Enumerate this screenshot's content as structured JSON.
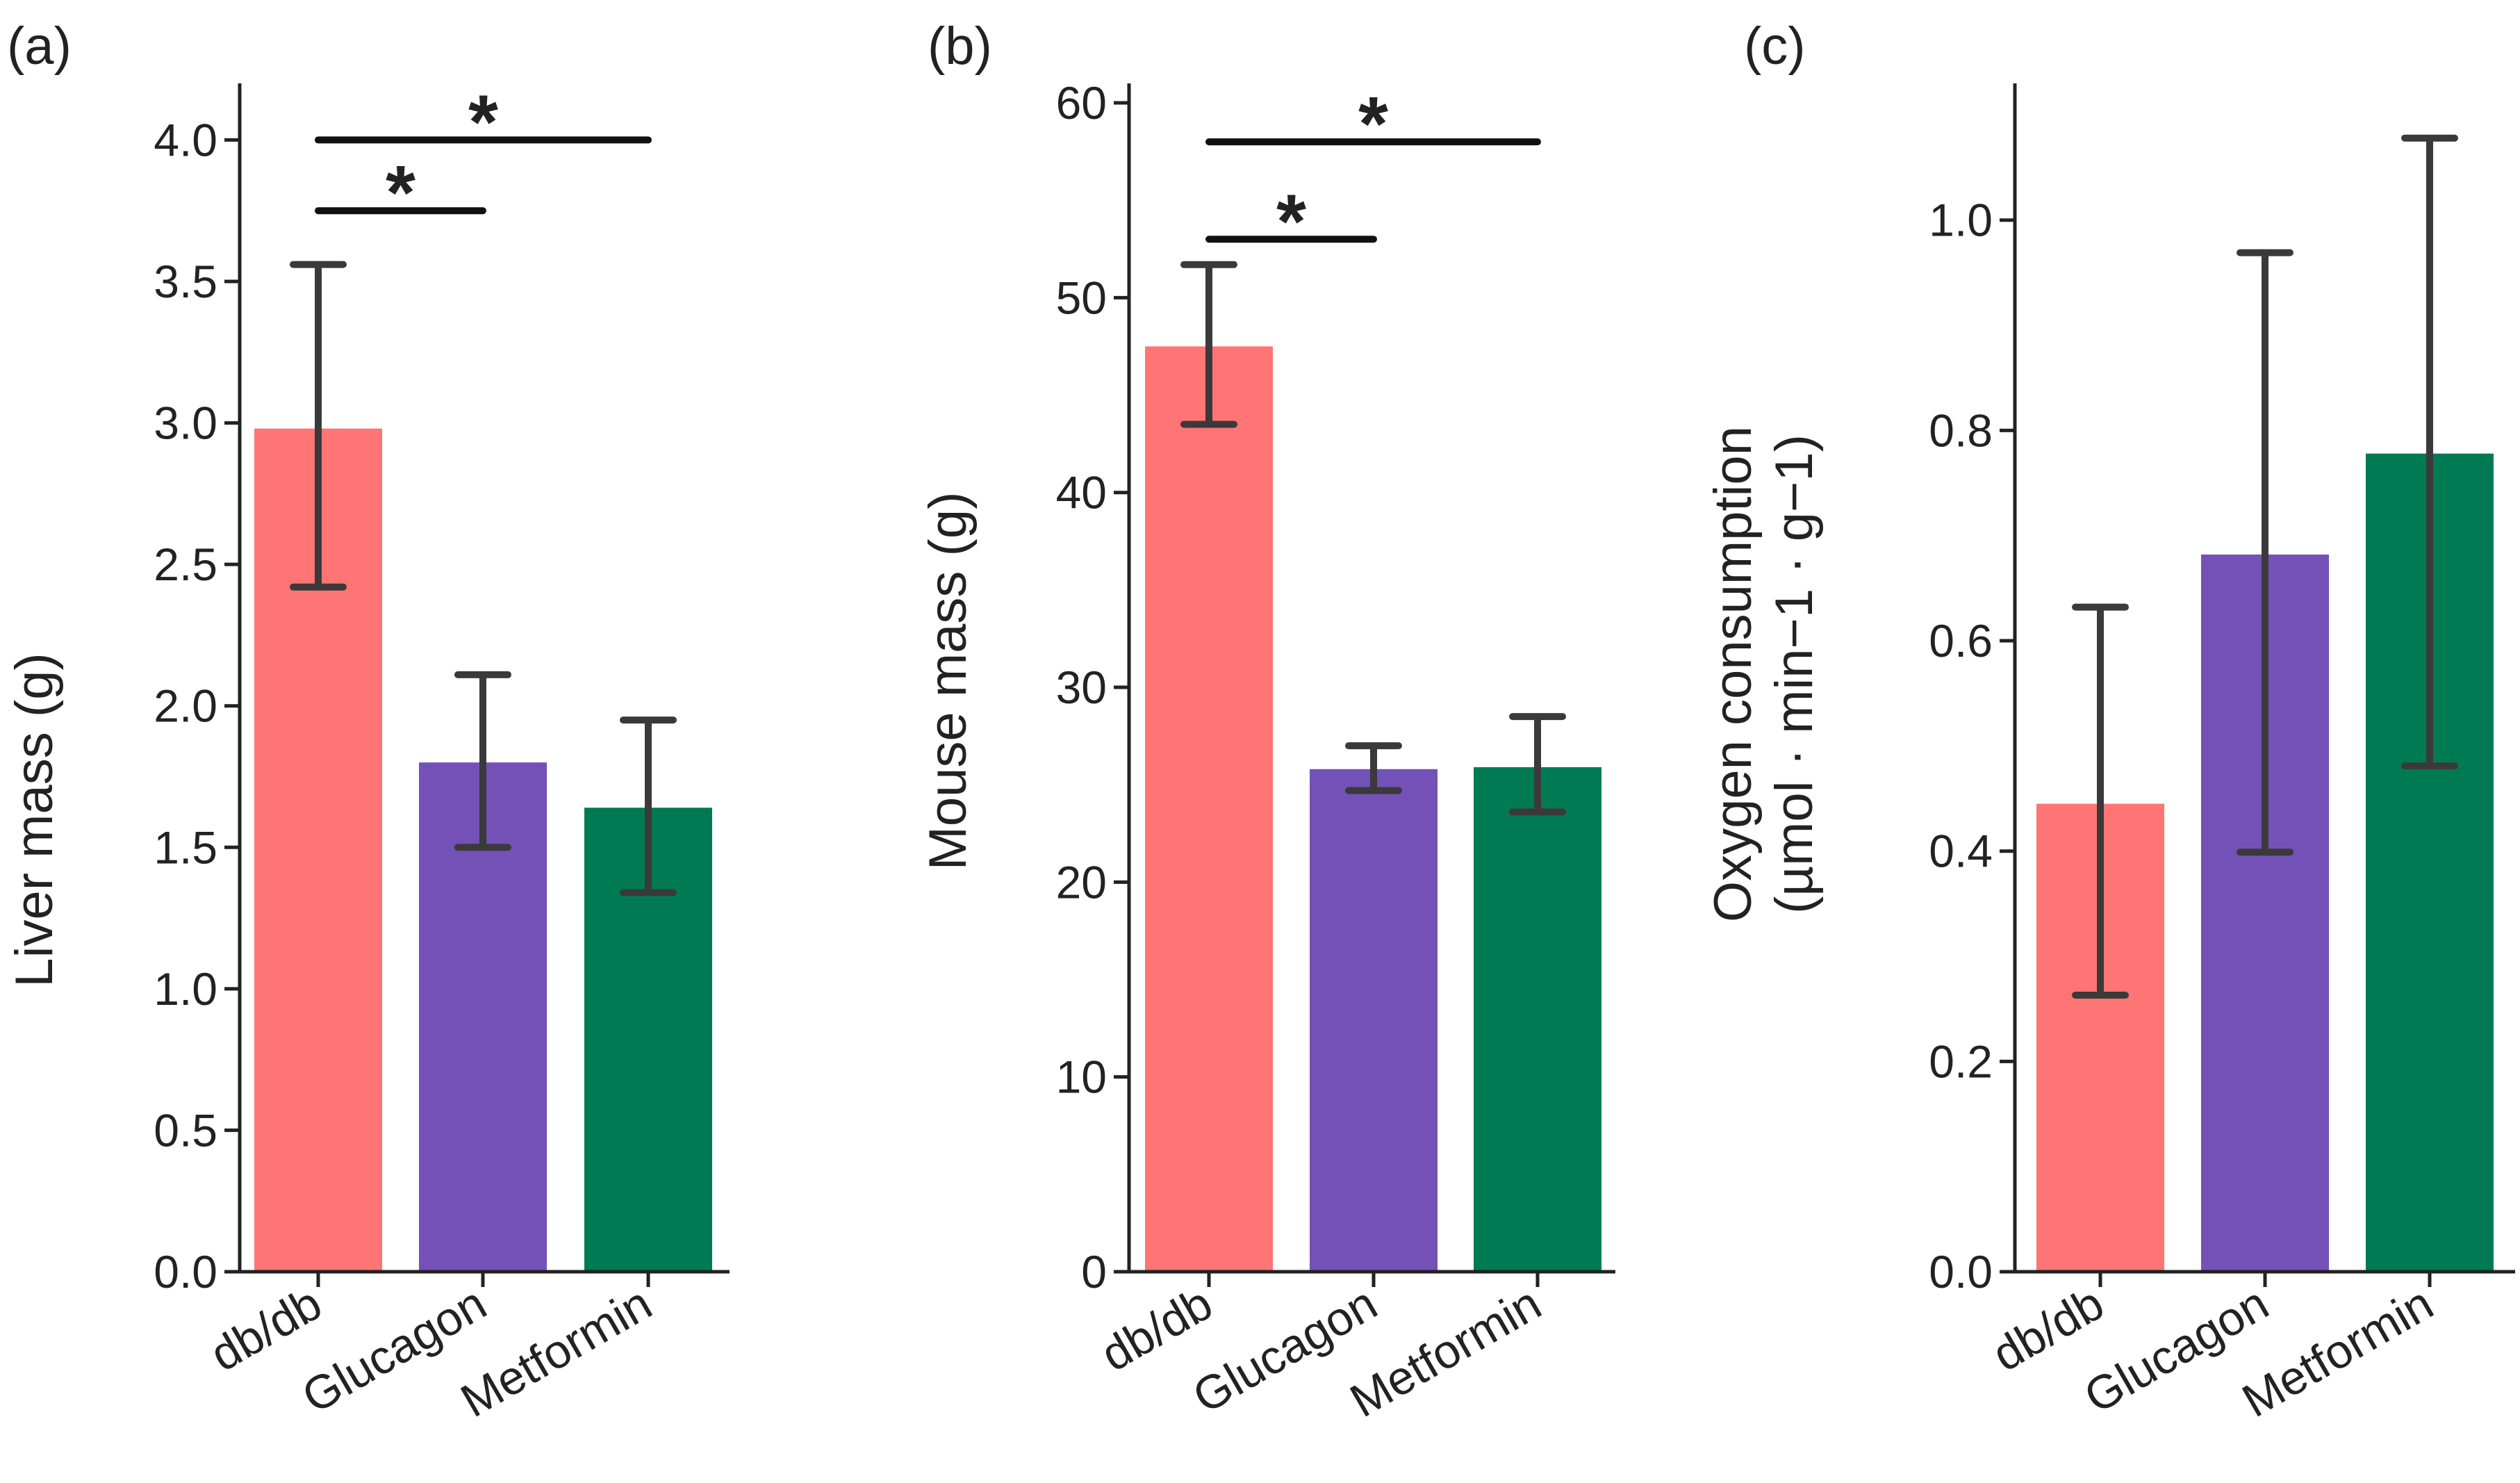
{
  "chart_data": [
    {
      "type": "bar",
      "panel_label": "(a)",
      "title": "",
      "ylabel": "Liver mass (g)",
      "ylabel_lines": [
        "Liver mass (g)"
      ],
      "xlabel": "",
      "categories": [
        "db/db",
        "Glucagon",
        "Metformin"
      ],
      "values": [
        2.98,
        1.8,
        1.64
      ],
      "error_low": [
        2.42,
        1.5,
        1.34
      ],
      "error_high": [
        3.56,
        2.11,
        1.95
      ],
      "colors": [
        "#ff7474",
        "#7451b7",
        "#007a53"
      ],
      "ylim": [
        0,
        4.2
      ],
      "yticks": [
        0.0,
        0.5,
        1.0,
        1.5,
        2.0,
        2.5,
        3.0,
        3.5,
        4.0
      ],
      "ytick_labels": [
        "0.0",
        "0.5",
        "1.0",
        "1.5",
        "2.0",
        "2.5",
        "3.0",
        "3.5",
        "4.0"
      ],
      "significance": [
        {
          "from": 0,
          "to": 1,
          "y": 3.75,
          "label": "*"
        },
        {
          "from": 0,
          "to": 2,
          "y": 4.0,
          "label": "*"
        }
      ]
    },
    {
      "type": "bar",
      "panel_label": "(b)",
      "title": "",
      "ylabel": "Mouse mass (g)",
      "ylabel_lines": [
        "Mouse mass (g)"
      ],
      "xlabel": "",
      "categories": [
        "db/db",
        "Glucagon",
        "Metformin"
      ],
      "values": [
        47.5,
        25.8,
        25.9
      ],
      "error_low": [
        43.5,
        24.7,
        23.6
      ],
      "error_high": [
        51.7,
        27.0,
        28.5
      ],
      "colors": [
        "#ff7474",
        "#7451b7",
        "#007a53"
      ],
      "ylim": [
        0,
        61
      ],
      "yticks": [
        0,
        10,
        20,
        30,
        40,
        50,
        60
      ],
      "ytick_labels": [
        "0",
        "10",
        "20",
        "30",
        "40",
        "50",
        "60"
      ],
      "significance": [
        {
          "from": 0,
          "to": 1,
          "y": 53.0,
          "label": "*"
        },
        {
          "from": 0,
          "to": 2,
          "y": 58.0,
          "label": "*"
        }
      ]
    },
    {
      "type": "bar",
      "panel_label": "(c)",
      "title": "",
      "ylabel": "Oxygen consumption (µmol · min−1 · g−1)",
      "ylabel_lines": [
        "Oxygen consumption",
        "(µmol · min−1 · g−1)"
      ],
      "xlabel": "",
      "categories": [
        "db/db",
        "Glucagon",
        "Metformin"
      ],
      "values": [
        0.445,
        0.682,
        0.778
      ],
      "error_low": [
        0.263,
        0.399,
        0.481
      ],
      "error_high": [
        0.632,
        0.969,
        1.078
      ],
      "colors": [
        "#ff7474",
        "#7451b7",
        "#007a53"
      ],
      "ylim": [
        0,
        1.13
      ],
      "yticks": [
        0.0,
        0.2,
        0.4,
        0.6,
        0.8,
        1.0
      ],
      "ytick_labels": [
        "0.0",
        "0.2",
        "0.4",
        "0.6",
        "0.8",
        "1.0"
      ],
      "significance": []
    }
  ]
}
